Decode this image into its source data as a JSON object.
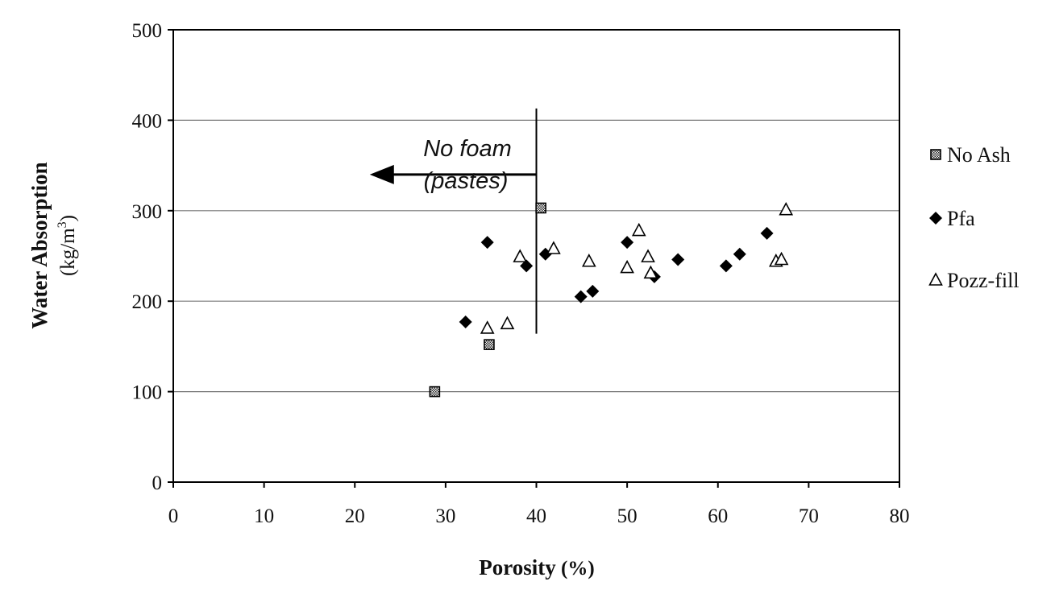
{
  "chart_data": {
    "type": "scatter",
    "xlabel": {
      "bold": "Porosity",
      "unit": " (%)"
    },
    "ylabel": {
      "bold": "Water Absorption",
      "unit_pre": "(kg/m",
      "unit_sup": "3",
      "unit_post": ")"
    },
    "xlim": [
      0,
      80
    ],
    "ylim": [
      0,
      500
    ],
    "x_ticks": [
      0,
      10,
      20,
      30,
      40,
      50,
      60,
      70,
      80
    ],
    "y_ticks": [
      0,
      100,
      200,
      300,
      400,
      500
    ],
    "grid": "horizontal",
    "legend_position": "right",
    "series": [
      {
        "name": "No Ash",
        "marker": "hatched-square",
        "points": [
          [
            28.8,
            100
          ],
          [
            34.8,
            152
          ],
          [
            40.5,
            303
          ]
        ]
      },
      {
        "name": "Pfa",
        "marker": "diamond",
        "points": [
          [
            32.2,
            177
          ],
          [
            34.6,
            265
          ],
          [
            38.9,
            239
          ],
          [
            41.0,
            252
          ],
          [
            44.9,
            205
          ],
          [
            46.2,
            211
          ],
          [
            50.0,
            265
          ],
          [
            53.0,
            227
          ],
          [
            55.6,
            246
          ],
          [
            60.9,
            239
          ],
          [
            62.4,
            252
          ],
          [
            65.4,
            275
          ]
        ]
      },
      {
        "name": "Pozz-fill",
        "marker": "open-triangle",
        "points": [
          [
            34.6,
            170
          ],
          [
            36.8,
            175
          ],
          [
            38.2,
            249
          ],
          [
            41.9,
            258
          ],
          [
            45.8,
            244
          ],
          [
            50.0,
            237
          ],
          [
            51.3,
            278
          ],
          [
            52.3,
            249
          ],
          [
            52.6,
            231
          ],
          [
            66.4,
            244
          ],
          [
            67.0,
            246
          ],
          [
            67.5,
            301
          ]
        ]
      }
    ],
    "annotations": {
      "line_1": "No foam",
      "line_2": "(pastes)",
      "divider_x": 40,
      "divider_y_range": [
        164,
        413
      ],
      "arrow_y": 340,
      "arrow_x_range": [
        40,
        22
      ]
    }
  }
}
